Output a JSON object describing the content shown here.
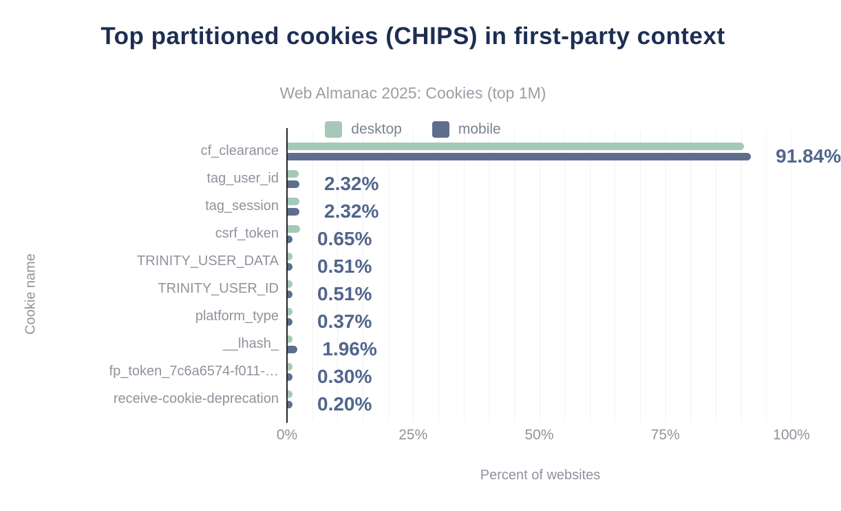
{
  "chart": {
    "title": "Top partitioned cookies (CHIPS) in first-party context",
    "subtitle": "Web Almanac 2025: Cookies (top 1M)",
    "xlabel": "Percent of websites",
    "ylabel": "Cookie name"
  },
  "colors": {
    "desktop": "#a4c9b8",
    "mobile": "#5e6e8c",
    "title": "#1e2e52",
    "value_label": "#51668c",
    "axis_text": "#8e939c",
    "axis_line": "#22262c",
    "gridline": "#f2f2f4",
    "background": "#ffffff"
  },
  "chart_data": {
    "type": "bar",
    "orientation": "horizontal",
    "title": "Top partitioned cookies (CHIPS) in first-party context",
    "subtitle": "Web Almanac 2025: Cookies (top 1M)",
    "xlabel": "Percent of websites",
    "ylabel": "Cookie name",
    "xlim": [
      0,
      100
    ],
    "x_ticks": [
      "0%",
      "25%",
      "50%",
      "75%",
      "100%"
    ],
    "x_tick_values": [
      0,
      25,
      50,
      75,
      100
    ],
    "grid": "vertical minor gridlines every 5%",
    "legend_position": "top-center",
    "categories": [
      "cf_clearance",
      "tag_user_id",
      "tag_session",
      "csrf_token",
      "TRINITY_USER_DATA",
      "TRINITY_USER_ID",
      "platform_type",
      "__lhash_",
      "fp_token_7c6a6574-f011-…",
      "receive-cookie-deprecation"
    ],
    "series": [
      {
        "name": "desktop",
        "color": "#a4c9b8",
        "values": [
          90.4,
          2.2,
          2.3,
          2.4,
          0.7,
          0.7,
          0.6,
          0.3,
          0.3,
          0.2
        ]
      },
      {
        "name": "mobile",
        "color": "#5e6e8c",
        "values": [
          91.84,
          2.32,
          2.32,
          0.65,
          0.51,
          0.51,
          0.37,
          1.96,
          0.3,
          0.2
        ]
      }
    ],
    "value_labels": [
      "91.84%",
      "2.32%",
      "2.32%",
      "0.65%",
      "0.51%",
      "0.51%",
      "0.37%",
      "1.96%",
      "0.30%",
      "0.20%"
    ],
    "value_labels_series": "mobile"
  }
}
